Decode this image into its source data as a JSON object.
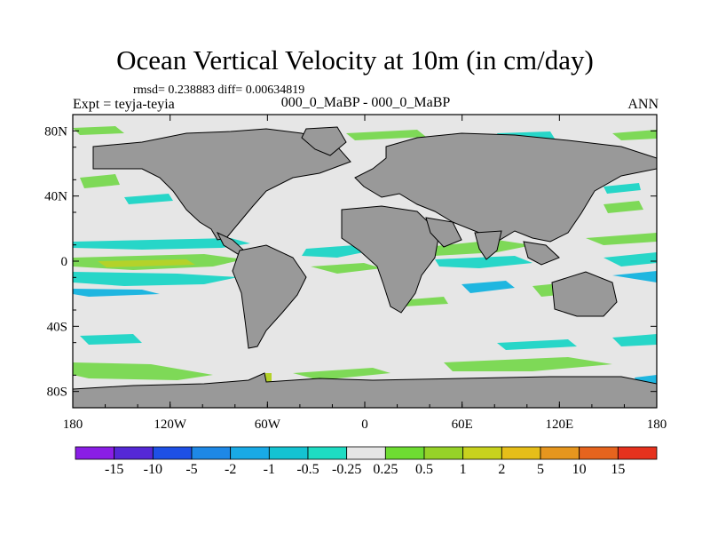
{
  "header": {
    "title": "Ocean Vertical Velocity at 10m (in cm/day)",
    "stats": "rmsd= 0.238883 diff= 0.00634819",
    "experiment_left": "Expt = teyja-teyia",
    "experiment_name": "000_0_MaBP - 000_0_MaBP",
    "season": "ANN"
  },
  "axes": {
    "x_ticks": [
      {
        "lon": -180,
        "label": "180"
      },
      {
        "lon": -120,
        "label": "120W"
      },
      {
        "lon": -60,
        "label": "60W"
      },
      {
        "lon": 0,
        "label": "0"
      },
      {
        "lon": 60,
        "label": "60E"
      },
      {
        "lon": 120,
        "label": "120E"
      },
      {
        "lon": 180,
        "label": "180"
      }
    ],
    "y_ticks": [
      {
        "lat": 80,
        "label": "80N"
      },
      {
        "lat": 40,
        "label": "40N"
      },
      {
        "lat": 0,
        "label": "0"
      },
      {
        "lat": -40,
        "label": "40S"
      },
      {
        "lat": -80,
        "label": "80S"
      }
    ],
    "lon_range": [
      -180,
      180
    ],
    "lat_range": [
      -90,
      90
    ]
  },
  "colorbar": {
    "labels": [
      "-15",
      "-10",
      "-5",
      "-2",
      "-1",
      "-0.5",
      "-0.25",
      "0.25",
      "0.5",
      "1",
      "2",
      "5",
      "10",
      "15"
    ],
    "colors": [
      "#8a1ee6",
      "#5528d6",
      "#1e50e6",
      "#1e88e6",
      "#19aae6",
      "#14c3d2",
      "#1edcc3",
      "#e6e6e6",
      "#6edc32",
      "#96d228",
      "#c8d21e",
      "#e6be19",
      "#e6961e",
      "#e6641e",
      "#e6321e"
    ]
  },
  "map_colors": {
    "ocean_background": "#e6e6e6",
    "land": "#999999",
    "positive_weak": "#7ed957",
    "positive_mid": "#b4d22a",
    "negative_weak": "#27d6c8",
    "negative_mid": "#1fb6e0"
  }
}
